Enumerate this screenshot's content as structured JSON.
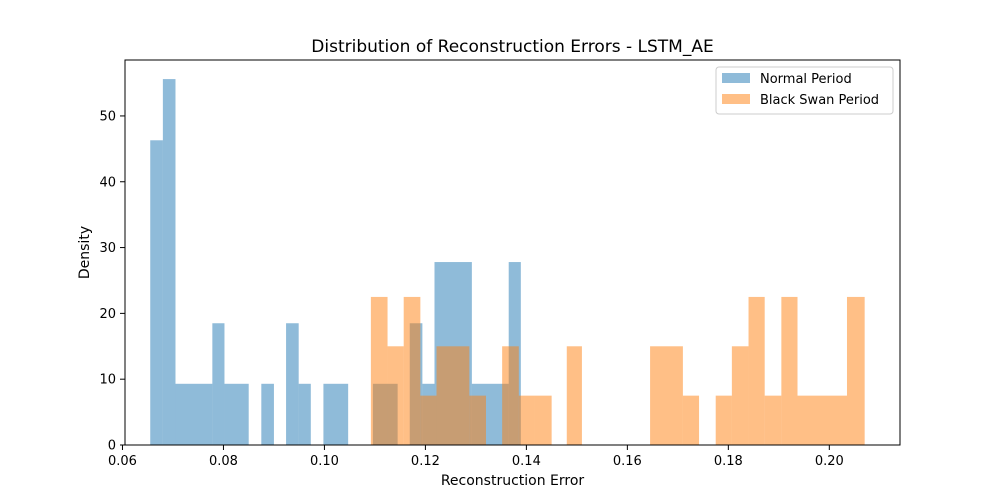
{
  "chart_data": {
    "type": "histogram",
    "title": "Distribution of Reconstruction Errors - LSTM_AE",
    "xlabel": "Reconstruction Error",
    "ylabel": "Density",
    "xlim": [
      0.0605,
      0.214
    ],
    "ylim": [
      0,
      58.5
    ],
    "xticks": [
      0.06,
      0.08,
      0.1,
      0.12,
      0.14,
      0.16,
      0.18,
      0.2
    ],
    "xtick_labels": [
      "0.06",
      "0.08",
      "0.10",
      "0.12",
      "0.14",
      "0.16",
      "0.18",
      "0.20"
    ],
    "yticks": [
      0,
      10,
      20,
      30,
      40,
      50
    ],
    "ytick_labels": [
      "0",
      "10",
      "20",
      "30",
      "40",
      "50"
    ],
    "grid": false,
    "legend_position": "top-right",
    "series": [
      {
        "name": "Normal Period",
        "color": "#1f77b4",
        "opacity": 0.5,
        "bins": [
          [
            0.0655,
            0.068,
            46.3
          ],
          [
            0.068,
            0.0705,
            55.6
          ],
          [
            0.0705,
            0.0778,
            9.3
          ],
          [
            0.0778,
            0.0802,
            18.5
          ],
          [
            0.0802,
            0.085,
            9.3
          ],
          [
            0.0875,
            0.09,
            9.3
          ],
          [
            0.0924,
            0.0949,
            18.5
          ],
          [
            0.0949,
            0.0973,
            9.3
          ],
          [
            0.0998,
            0.1047,
            9.3
          ],
          [
            0.1096,
            0.1145,
            9.3
          ],
          [
            0.1169,
            0.1194,
            18.5
          ],
          [
            0.1194,
            0.1218,
            9.3
          ],
          [
            0.1218,
            0.1292,
            27.8
          ],
          [
            0.1292,
            0.1365,
            9.3
          ],
          [
            0.1365,
            0.1389,
            27.8
          ]
        ]
      },
      {
        "name": "Black Swan Period",
        "color": "#ff7f0e",
        "opacity": 0.5,
        "bins": [
          [
            0.1092,
            0.1125,
            22.5
          ],
          [
            0.1125,
            0.1157,
            15.0
          ],
          [
            0.1157,
            0.119,
            22.5
          ],
          [
            0.119,
            0.1222,
            7.5
          ],
          [
            0.1222,
            0.1287,
            15.0
          ],
          [
            0.1287,
            0.132,
            7.5
          ],
          [
            0.1352,
            0.1385,
            15.0
          ],
          [
            0.1385,
            0.1417,
            7.5
          ],
          [
            0.1417,
            0.145,
            7.5
          ],
          [
            0.148,
            0.151,
            15.0
          ],
          [
            0.1645,
            0.171,
            15.0
          ],
          [
            0.171,
            0.1742,
            7.5
          ],
          [
            0.1775,
            0.1807,
            7.5
          ],
          [
            0.1807,
            0.184,
            15.0
          ],
          [
            0.184,
            0.1872,
            22.5
          ],
          [
            0.1872,
            0.1905,
            7.5
          ],
          [
            0.1905,
            0.1937,
            22.5
          ],
          [
            0.1937,
            0.2035,
            7.5
          ],
          [
            0.2035,
            0.207,
            22.5
          ]
        ]
      }
    ]
  }
}
